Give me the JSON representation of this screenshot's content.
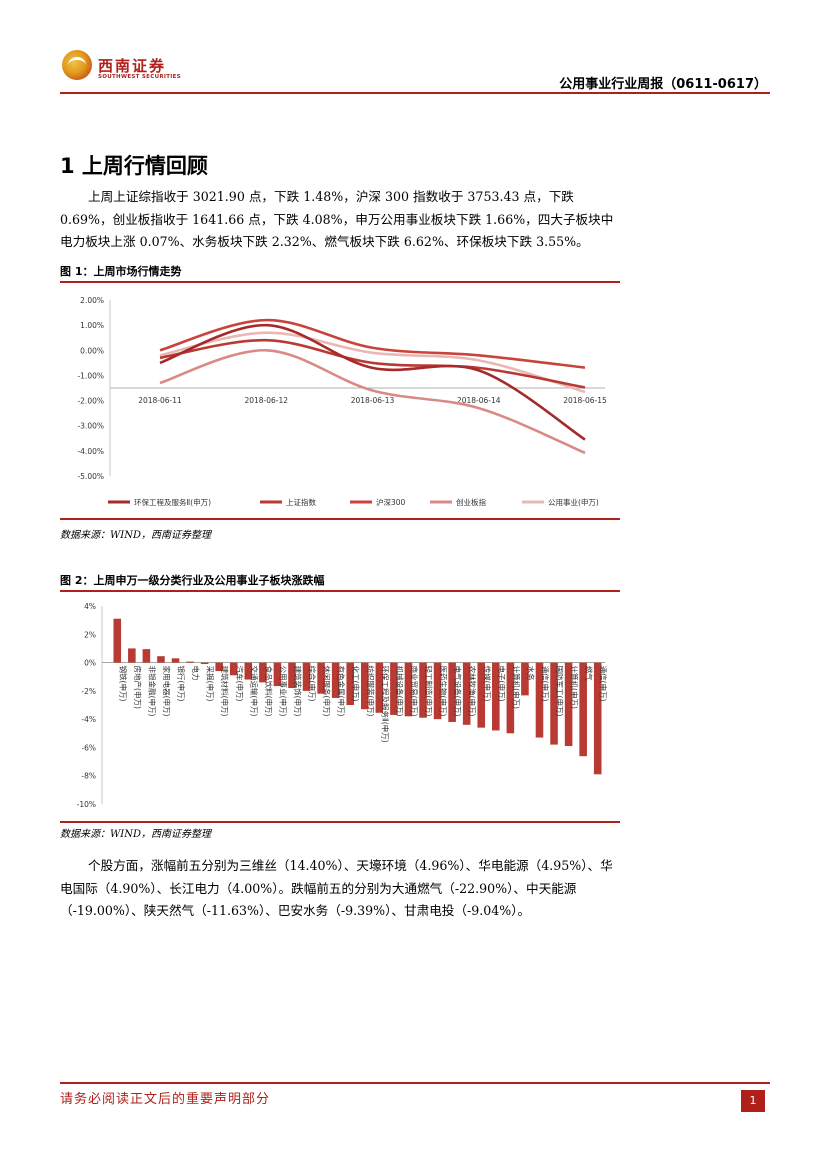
{
  "header": {
    "logo_cn": "西南证券",
    "logo_en": "SOUTHWEST SECURITIES",
    "report_title": "公用事业行业周报（0611-0617）"
  },
  "section": {
    "title": "1  上周行情回顾",
    "para1": "上周上证综指收于 3021.90 点，下跌 1.48%，沪深 300 指数收于 3753.43 点，下跌 0.69%，创业板指收于 1641.66 点，下跌 4.08%，申万公用事业板块下跌 1.66%，四大子板块中电力板块上涨 0.07%、水务板块下跌 2.32%、燃气板块下跌 6.62%、环保板块下跌 3.55%。",
    "para2": "个股方面，涨幅前五分别为三维丝（14.40%）、天壕环境（4.96%）、华电能源（4.95%）、华电国际（4.90%）、长江电力（4.00%）。跌幅前五的分别为大通燃气（-22.90%）、中天能源（-19.00%）、陕天然气（-11.63%）、巴安水务（-9.39%）、甘肃电投（-9.04%）。"
  },
  "figure1": {
    "title": "图 1：上周市场行情走势",
    "source": "数据来源：WIND，西南证券整理"
  },
  "figure2": {
    "title": "图 2：上周申万一级分类行业及公用事业子板块涨跌幅",
    "source": "数据来源：WIND，西南证券整理"
  },
  "footer": {
    "note": "请务必阅读正文后的重要声明部分",
    "page": "1"
  },
  "chart_data": [
    {
      "type": "line",
      "title": "上周市场行情走势",
      "x": [
        "2018-06-11",
        "2018-06-12",
        "2018-06-13",
        "2018-06-14",
        "2018-06-15"
      ],
      "ylim": [
        -5,
        2
      ],
      "yticks": [
        "2.00%",
        "1.00%",
        "0.00%",
        "-1.00%",
        "-2.00%",
        "-3.00%",
        "-4.00%",
        "-5.00%"
      ],
      "legend_position": "bottom",
      "series": [
        {
          "name": "环保工程及服务Ⅱ(申万)",
          "values": [
            -0.5,
            1.0,
            -0.7,
            -0.8,
            -3.55
          ],
          "color": "#a52a2a"
        },
        {
          "name": "上证指数",
          "values": [
            -0.3,
            0.4,
            -0.5,
            -0.7,
            -1.48
          ],
          "color": "#b83a32"
        },
        {
          "name": "沪深300",
          "values": [
            0.0,
            1.2,
            0.1,
            -0.2,
            -0.69
          ],
          "color": "#c9433b"
        },
        {
          "name": "创业板指",
          "values": [
            -1.3,
            0.0,
            -1.6,
            -2.3,
            -4.08
          ],
          "color": "#d98a86"
        },
        {
          "name": "公用事业(申万)",
          "values": [
            -0.2,
            0.7,
            -0.1,
            -0.4,
            -1.66
          ],
          "color": "#e8b8b5"
        }
      ]
    },
    {
      "type": "bar",
      "title": "上周申万一级分类行业及公用事业子板块涨跌幅",
      "ylim": [
        -10,
        4
      ],
      "yticks": [
        "4%",
        "2%",
        "0%",
        "-2%",
        "-4%",
        "-6%",
        "-8%",
        "-10%"
      ],
      "color": "#b83a32",
      "categories": [
        "钢铁(申万)",
        "房地产(申万)",
        "非银金融(申万)",
        "家用电器(申万)",
        "银行(申万)",
        "电力",
        "采掘(申万)",
        "建筑材料(申万)",
        "汽车(申万)",
        "交通运输(申万)",
        "食品饮料(申万)",
        "公用事业(申万)",
        "建筑装饰(申万)",
        "综合(申万)",
        "休闲服务(申万)",
        "有色金属(申万)",
        "化工(申万)",
        "纺织服装(申万)",
        "环保工程及服务Ⅱ(申万)",
        "机械设备(申万)",
        "商业贸易(申万)",
        "轻工制造(申万)",
        "医药生物(申万)",
        "电气设备(申万)",
        "农林牧渔(申万)",
        "传媒(申万)",
        "电子(申万)",
        "计算机(申万)",
        "水务",
        "通信(申万)",
        "国防军工(申万)",
        "计算机(申万)",
        "燃气",
        "通信(申万)"
      ],
      "labels_shown": [
        "钢铁(申万)",
        "房地产(申万)",
        "非银金融(申万)",
        "家用电器(申万)",
        "银行(申万)",
        "电力",
        "采掘(申万)",
        "建筑材料(申万)",
        "汽车(申万)",
        "交通运输(申万)",
        "食品饮料(申万)",
        "公用事业(申万)",
        "建筑装饰(申万)",
        "综合(申万)",
        "休闲服务(申万)",
        "有色金属(申万)",
        "化工(申万)",
        "纺织服装(申万)",
        "环保工程及服务Ⅱ(申万)",
        "机械设备(申万)",
        "商业贸易(申万)",
        "轻工制造(申万)",
        "医药生物(申万)",
        "电气设备(申万)",
        "农林牧渔(申万)",
        "传媒(申万)",
        "电子(申万)",
        "计算机(申万)",
        "水务",
        "通信(申万)",
        "国防军工(申万)",
        "计算机(申万)",
        "燃气",
        "通信(申万)"
      ],
      "values": [
        3.1,
        1.0,
        0.95,
        0.45,
        0.3,
        0.07,
        -0.1,
        -0.6,
        -0.9,
        -1.2,
        -1.4,
        -1.66,
        -1.8,
        -2.0,
        -2.2,
        -2.5,
        -3.0,
        -3.3,
        -3.55,
        -3.7,
        -3.8,
        -3.9,
        -4.0,
        -4.2,
        -4.4,
        -4.6,
        -4.8,
        -5.0,
        -2.32,
        -5.3,
        -5.8,
        -5.9,
        -6.62,
        -7.9
      ]
    }
  ]
}
